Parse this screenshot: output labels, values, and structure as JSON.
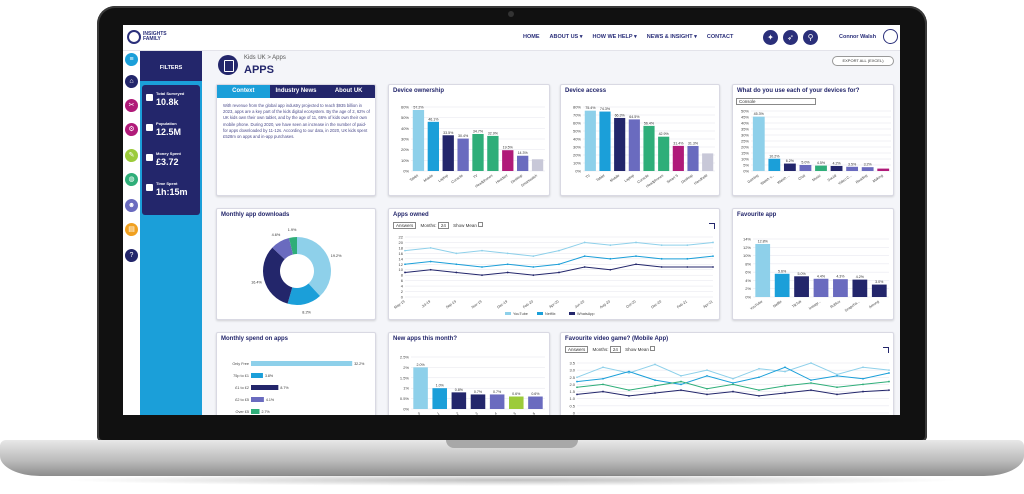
{
  "colors": {
    "navy": "#23266b",
    "blue": "#1b9fd9",
    "light_blue": "#8ed0ea",
    "purple": "#6a6bbf",
    "green": "#2fae79",
    "lime": "#9ccb3a",
    "magenta": "#b01a79",
    "grey": "#c8c8d8"
  },
  "header": {
    "logo_text": "INSIGHTS FAMILY",
    "nav": [
      "HOME",
      "ABOUT US ▾",
      "HOW WE HELP ▾",
      "NEWS & INSIGHT ▾",
      "CONTACT"
    ],
    "icons": [
      "bulb-icon",
      "rocket-icon",
      "search-icon"
    ],
    "user": "Connor Walsh"
  },
  "rail_icons": [
    "menu-icon",
    "home-icon",
    "tools-icon",
    "gear-icon",
    "paint-icon",
    "globe-icon",
    "people-icon",
    "book-icon",
    "help-icon"
  ],
  "filters": {
    "title": "FILTERS",
    "stats": [
      {
        "label": "Total Surveyed",
        "value": "10.8k"
      },
      {
        "label": "Population",
        "value": "12.5M"
      },
      {
        "label": "Money Spent",
        "value": "£3.72"
      },
      {
        "label": "Time Spent",
        "value": "1h:15m"
      }
    ]
  },
  "page": {
    "breadcrumb": "Kids UK > Apps",
    "title": "APPS",
    "export_label": "EXPORT ALL (EXCEL)"
  },
  "context": {
    "tabs": [
      "Context",
      "Industry News",
      "About UK"
    ],
    "text": "With revenue from the global app industry projected to reach $935 billion in 2023, apps are a key part of the kids digital ecosystem. By the age of 2, 62% of UK kids own their own tablet, and by the age of 11, 66% of kids own their own mobile phone. During 2020, we have seen an increase in the number of paid-for apps downloaded by 11-12s. According to our data, in 2020, UK kids spent £528m on apps and in-app purchases."
  },
  "cards": {
    "device_ownership": "Device ownership",
    "device_access": "Device access",
    "device_use": "What do you use each of your devices for?",
    "monthly_downloads": "Monthly app downloads",
    "apps_owned": "Apps owned",
    "favourite_app": "Favourite app",
    "monthly_spend": "Monthly spend on apps",
    "new_apps": "New apps this month?",
    "fav_game": "Favourite video game? (Mobile App)"
  },
  "controls": {
    "answers": "Answers",
    "months_label": "Months:",
    "months_value": "24",
    "show_mean": "Show Mean",
    "device_select": "Console"
  },
  "chart_data": [
    {
      "type": "bar",
      "id": "device_ownership",
      "categories": [
        "Tablet",
        "Mobile",
        "Laptop",
        "Console",
        "TV",
        "Headphones",
        "Headset",
        "Desktop",
        "Smartwatch"
      ],
      "values": [
        57.2,
        46.1,
        33.5,
        30.4,
        34.7,
        32.9,
        19.5,
        14.3,
        11.0
      ],
      "value_labels": [
        "57.2%",
        "46.1%",
        "33.5%",
        "30.4%",
        "34.7%",
        "32.9%",
        "19.5%",
        "14.3%",
        ""
      ],
      "yticks": [
        "0%",
        "10%",
        "20%",
        "30%",
        "40%",
        "50%",
        "60%"
      ],
      "ylim": [
        0,
        60
      ]
    },
    {
      "type": "bar",
      "id": "device_access",
      "categories": [
        "TV",
        "Tablet",
        "Mobile",
        "Laptop",
        "Console",
        "Headphones",
        "Smart S",
        "Desktop",
        "Handheld"
      ],
      "values": [
        75.4,
        74.3,
        66.3,
        64.5,
        56.4,
        42.9,
        31.4,
        31.3,
        22.0
      ],
      "value_labels": [
        "75.4%",
        "74.3%",
        "66.3%",
        "64.5%",
        "56.4%",
        "42.9%",
        "31.4%",
        "31.3%",
        ""
      ],
      "yticks": [
        "0%",
        "10%",
        "20%",
        "30%",
        "40%",
        "50%",
        "60%",
        "70%",
        "80%"
      ],
      "ylim": [
        0,
        80
      ]
    },
    {
      "type": "bar",
      "id": "device_use",
      "categories": [
        "Gaming",
        "Watch v...",
        "Watch ...",
        "Chat",
        "Music",
        "Social",
        "Video C...",
        "Reading",
        "Making"
      ],
      "values": [
        45.3,
        10.2,
        6.2,
        5.0,
        4.5,
        4.2,
        3.5,
        3.2,
        2.0
      ],
      "value_labels": [
        "45.3%",
        "10.2%",
        "6.2%",
        "5.0%",
        "4.5%",
        "4.2%",
        "3.5%",
        "3.2%",
        ""
      ],
      "yticks": [
        "0%",
        "5%",
        "10%",
        "15%",
        "20%",
        "25%",
        "30%",
        "35%",
        "40%",
        "45%",
        "50%"
      ],
      "ylim": [
        0,
        50
      ]
    },
    {
      "type": "pie",
      "id": "monthly_downloads",
      "labels": [
        "19.2%",
        "8.2%",
        "16.4%",
        "4.6%",
        "1.9%"
      ],
      "values": [
        19.2,
        8.2,
        16.4,
        4.6,
        1.9
      ]
    },
    {
      "type": "line",
      "id": "apps_owned",
      "x": [
        "May-19",
        "Jul-19",
        "Sep-19",
        "Nov-19",
        "Dec-19",
        "Feb-20",
        "Apr-20",
        "Jun-20",
        "Aug-20",
        "Oct-20",
        "Dec-20",
        "Feb-21",
        "Apr-21"
      ],
      "yticks": [
        "0",
        "2",
        "4",
        "6",
        "8",
        "10",
        "12",
        "14",
        "16",
        "18",
        "20",
        "22"
      ],
      "ylim": [
        0,
        22
      ],
      "series": [
        {
          "name": "YouTube",
          "values": [
            17,
            18,
            16,
            17,
            16,
            15,
            17,
            20,
            19,
            20,
            19,
            19,
            20
          ]
        },
        {
          "name": "Netflix",
          "values": [
            12,
            13,
            12,
            11,
            12,
            11,
            12,
            15,
            14,
            15,
            14,
            14,
            15
          ]
        },
        {
          "name": "WhatsApp",
          "values": [
            9,
            10,
            9,
            8,
            9,
            8,
            9,
            11,
            10,
            12,
            11,
            11,
            11
          ]
        }
      ]
    },
    {
      "type": "bar",
      "id": "favourite_app",
      "categories": [
        "YouTube",
        "Netflix",
        "TikTok",
        "Instagr...",
        "Roblox",
        "Snapcha...",
        "Among"
      ],
      "values": [
        12.8,
        5.6,
        5.0,
        4.4,
        4.3,
        4.2,
        3.0
      ],
      "value_labels": [
        "12.8%",
        "5.6%",
        "5.0%",
        "4.4%",
        "4.3%",
        "4.2%",
        "3.0%"
      ],
      "yticks": [
        "0%",
        "2%",
        "4%",
        "6%",
        "8%",
        "10%",
        "12%",
        "14%"
      ],
      "ylim": [
        0,
        14
      ]
    },
    {
      "type": "bar",
      "id": "monthly_spend",
      "orientation": "horizontal",
      "categories": [
        "Only Free",
        "75p to £1",
        "£1 to £2",
        "£2 to £5",
        "Over £5"
      ],
      "values": [
        32.2,
        3.8,
        8.7,
        4.1,
        2.7
      ],
      "value_labels": [
        "32.2%",
        "3.8%",
        "8.7%",
        "4.1%",
        "2.7%"
      ]
    },
    {
      "type": "bar",
      "id": "new_apps",
      "categories": [
        "0",
        "1",
        "2",
        "3",
        "4",
        "5",
        "6"
      ],
      "values": [
        2.0,
        1.0,
        0.8,
        0.7,
        0.7,
        0.6,
        0.6
      ],
      "value_labels": [
        "2.0%",
        "1.0%",
        "0.8%",
        "0.7%",
        "0.7%",
        "0.6%",
        "0.6%"
      ],
      "yticks": [
        "0%",
        "0.5%",
        "1%",
        "1.5%",
        "2%",
        "2.5%"
      ],
      "ylim": [
        0,
        2.5
      ]
    },
    {
      "type": "line",
      "id": "fav_game",
      "yticks": [
        "0",
        "0.5",
        "1.0",
        "1.5",
        "2.0",
        "2.5",
        "3.0",
        "3.5"
      ],
      "ylim": [
        0,
        3.5
      ],
      "series": [
        {
          "values": [
            2.5,
            3.2,
            2.8,
            3.4,
            2.6,
            3.0,
            2.4,
            3.1,
            2.9,
            3.5,
            2.7,
            3.2,
            3.0
          ]
        },
        {
          "values": [
            2.2,
            2.4,
            2.9,
            2.3,
            2.0,
            2.6,
            2.1,
            2.5,
            3.2,
            2.3,
            2.6,
            2.4,
            2.8
          ]
        },
        {
          "values": [
            1.8,
            2.0,
            1.6,
            1.9,
            2.2,
            1.7,
            2.0,
            1.6,
            1.9,
            2.1,
            1.8,
            2.0,
            2.2
          ]
        },
        {
          "values": [
            1.3,
            1.5,
            1.2,
            1.4,
            1.6,
            1.3,
            1.5,
            1.2,
            1.4,
            1.6,
            1.3,
            1.5,
            1.6
          ]
        }
      ]
    }
  ]
}
